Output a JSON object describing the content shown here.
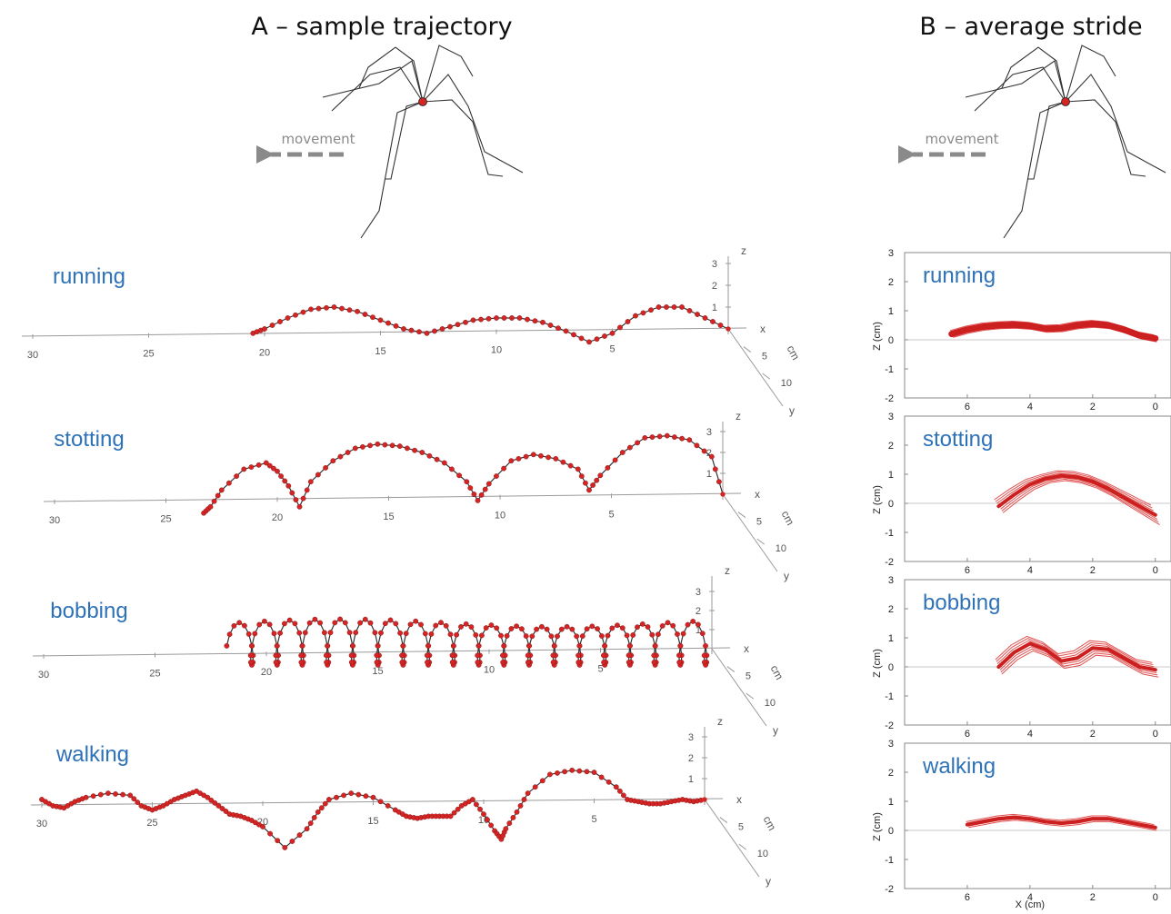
{
  "titles": {
    "a": "A – sample trajectory",
    "b": "B – average stride"
  },
  "movement_label": "movement",
  "colors": {
    "trajectory": "#cc2020",
    "dot": "#d42424",
    "connector": "#333333",
    "axis": "#9a9a9a",
    "gait_label": "#2e72b8",
    "arrow": "#8a8a8a"
  },
  "chart_data": [
    {
      "panel": "A",
      "type": "line",
      "projection": "3d",
      "x_ticks": [
        "30",
        "25",
        "20",
        "15",
        "10",
        "5"
      ],
      "z_ticks": [
        "1",
        "2",
        "3"
      ],
      "y_ticks": [
        "5",
        "10"
      ],
      "axis_names": {
        "x": "x",
        "y": "y",
        "z": "z",
        "unit": "cm"
      },
      "series": [
        {
          "name": "running",
          "x": [
            20.5,
            20,
            19,
            18,
            17,
            16,
            15,
            14,
            13,
            12,
            11,
            10,
            9,
            8,
            7,
            6,
            5,
            4,
            3,
            2,
            1,
            0
          ],
          "z": [
            -0.2,
            0,
            0.5,
            0.9,
            1.0,
            0.8,
            0.4,
            0,
            -0.2,
            0.1,
            0.4,
            0.5,
            0.5,
            0.3,
            -0.1,
            -0.6,
            -0.2,
            0.6,
            1.0,
            1.0,
            0.5,
            0
          ]
        },
        {
          "name": "stotting",
          "x": [
            23.3,
            23,
            22.5,
            21.5,
            20.5,
            20,
            19.5,
            19,
            18.5,
            17.5,
            16.5,
            15.5,
            14.5,
            13.5,
            12.5,
            11.5,
            11,
            10.5,
            9.5,
            8.5,
            7.5,
            6.5,
            6,
            5.5,
            4.5,
            3.5,
            2.5,
            1.5,
            0.5,
            0
          ],
          "z": [
            -0.9,
            -0.6,
            0.2,
            1.2,
            1.5,
            1.1,
            0.4,
            -0.6,
            0.6,
            1.6,
            2.2,
            2.4,
            2.3,
            2.0,
            1.5,
            0.6,
            -0.3,
            0.5,
            1.6,
            1.9,
            1.7,
            1.2,
            0.2,
            0.9,
            2.0,
            2.7,
            2.8,
            2.6,
            1.8,
            0
          ]
        },
        {
          "name": "bobbing",
          "x": [],
          "z": [],
          "periods": 19,
          "x_start": 21.5,
          "x_end": 0,
          "z_peak": 1.2,
          "z_trough": -1.0
        },
        {
          "name": "walking",
          "x": [
            30,
            29.5,
            29,
            28.5,
            28,
            27,
            26,
            25.5,
            25,
            24.5,
            24,
            23.5,
            23,
            22.5,
            22,
            21.5,
            21,
            20.5,
            20,
            19,
            18,
            17.5,
            17,
            16,
            15,
            14,
            13.5,
            13,
            12.5,
            12,
            11.5,
            11,
            10.5,
            10,
            9.5,
            9.2,
            9,
            8.5,
            8,
            7,
            6,
            5,
            4,
            3.5,
            3,
            2.5,
            2,
            1.5,
            1,
            0.5,
            0
          ],
          "z": [
            0,
            -0.3,
            -0.4,
            -0.1,
            0.1,
            0.3,
            0.2,
            -0.3,
            -0.5,
            -0.3,
            0,
            0.2,
            0.4,
            0.1,
            -0.3,
            -0.7,
            -0.8,
            -1.0,
            -1.3,
            -2.3,
            -1.4,
            -0.6,
            0,
            0.3,
            0.1,
            -0.5,
            -0.8,
            -0.9,
            -0.8,
            -0.8,
            -0.8,
            -0.3,
            0,
            -0.7,
            -1.5,
            -1.9,
            -1.4,
            -0.6,
            0.3,
            1.2,
            1.4,
            1.3,
            0.6,
            0,
            -0.1,
            -0.2,
            -0.2,
            -0.1,
            0,
            -0.1,
            0
          ]
        }
      ]
    },
    {
      "panel": "B",
      "type": "line",
      "xlabel": "X (cm)",
      "ylabel": "Z (cm)",
      "xlim": [
        8,
        -0.5
      ],
      "ylim": [
        -2,
        3
      ],
      "x_ticks": [
        "6",
        "4",
        "2",
        "0"
      ],
      "y_ticks": [
        "3",
        "2",
        "1",
        "0",
        "-1",
        "-2"
      ],
      "series": [
        {
          "name": "running",
          "x": [
            6.5,
            6,
            5.5,
            5,
            4.5,
            4,
            3.5,
            3,
            2.5,
            2,
            1.5,
            1,
            0.5,
            0
          ],
          "z": [
            0.2,
            0.35,
            0.45,
            0.5,
            0.52,
            0.48,
            0.38,
            0.4,
            0.5,
            0.55,
            0.5,
            0.35,
            0.15,
            0.05
          ],
          "spread": 0.12,
          "replicates": 4
        },
        {
          "name": "stotting",
          "x": [
            5,
            4.5,
            4,
            3.5,
            3,
            2.5,
            2,
            1.5,
            1,
            0.5,
            0
          ],
          "z": [
            -0.1,
            0.3,
            0.65,
            0.85,
            0.95,
            0.9,
            0.75,
            0.5,
            0.2,
            -0.1,
            -0.4
          ],
          "spread": 0.35,
          "replicates": 8
        },
        {
          "name": "bobbing",
          "x": [
            5,
            4.5,
            4,
            3.5,
            3,
            2.5,
            2,
            1.5,
            1,
            0.5,
            0
          ],
          "z": [
            0.0,
            0.5,
            0.8,
            0.6,
            0.2,
            0.3,
            0.65,
            0.6,
            0.3,
            0.0,
            -0.1
          ],
          "spread": 0.25,
          "replicates": 8
        },
        {
          "name": "walking",
          "x": [
            6,
            5.5,
            5,
            4.5,
            4,
            3.5,
            3,
            2.5,
            2,
            1.5,
            1,
            0.5,
            0
          ],
          "z": [
            0.2,
            0.3,
            0.4,
            0.45,
            0.4,
            0.3,
            0.25,
            0.3,
            0.4,
            0.4,
            0.3,
            0.2,
            0.1
          ],
          "spread": 0.1,
          "replicates": 5
        }
      ]
    }
  ]
}
